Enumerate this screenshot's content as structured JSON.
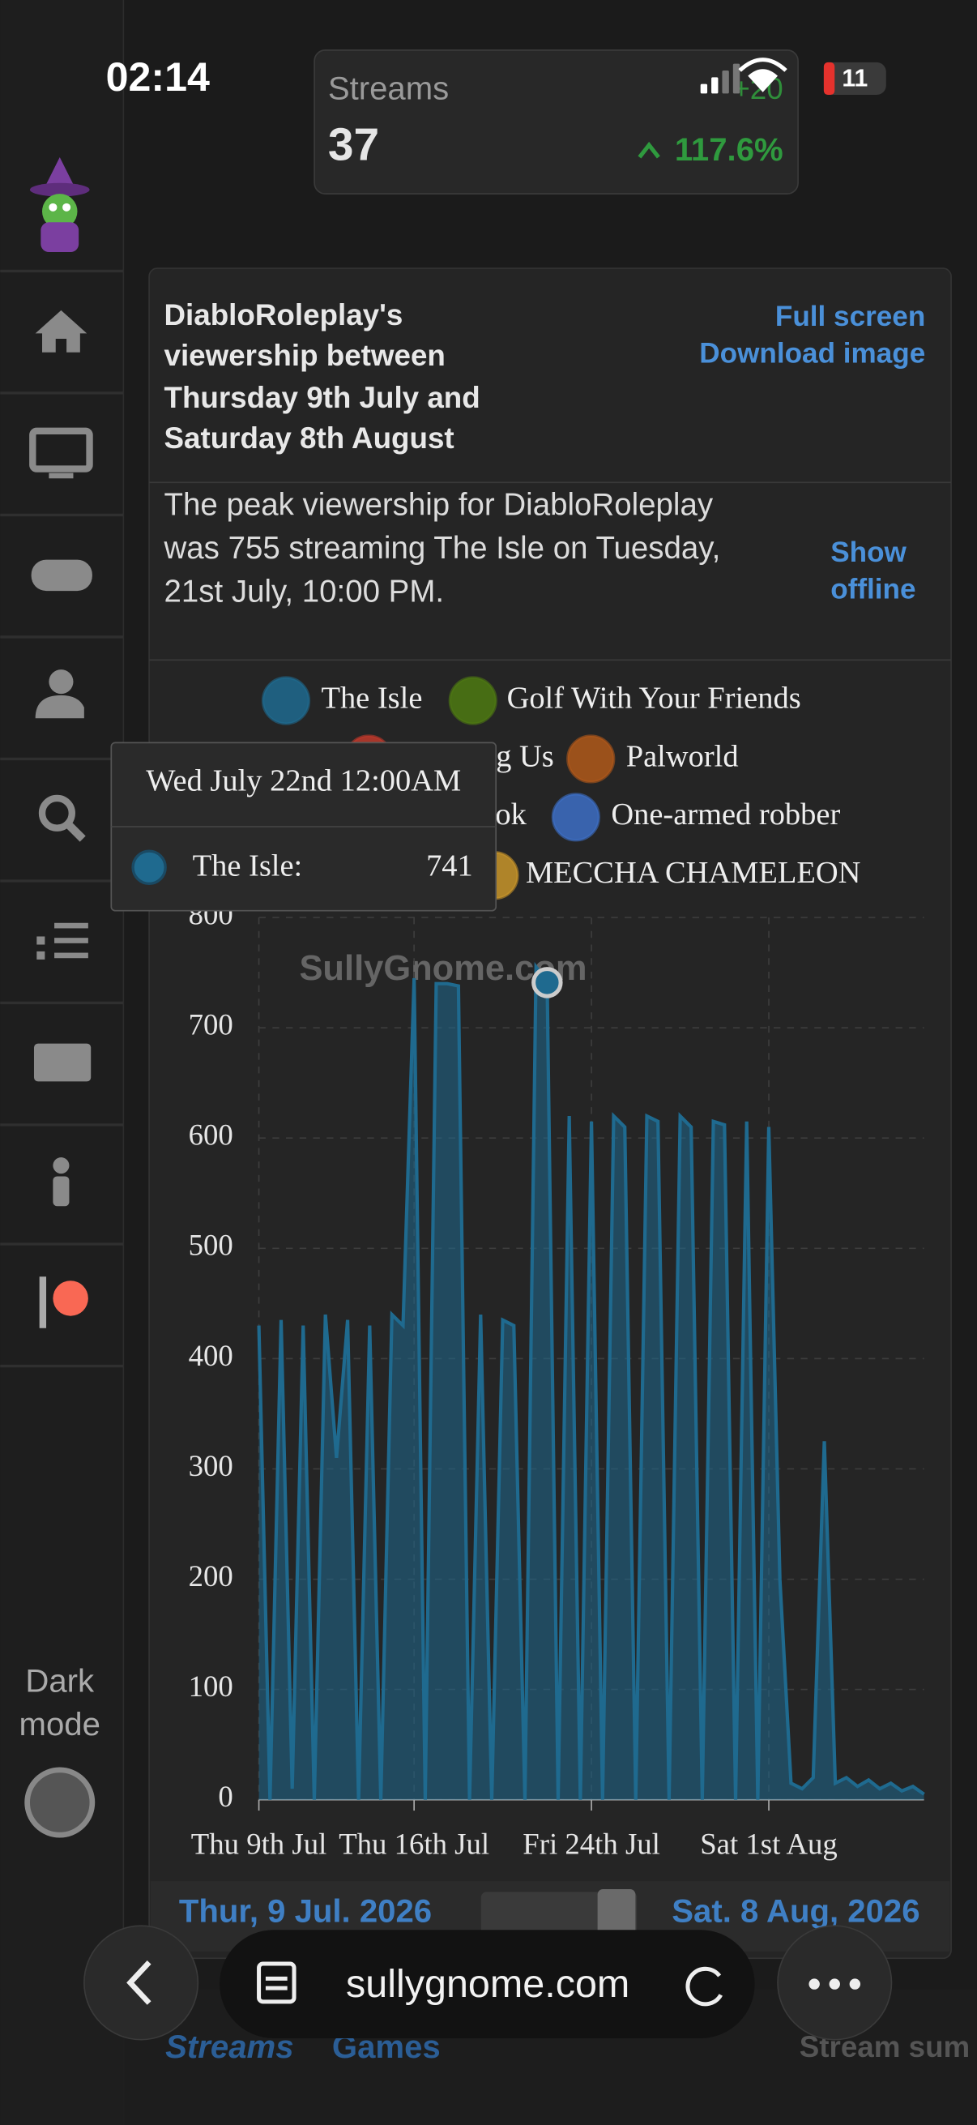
{
  "status_bar": {
    "time": "02:14",
    "battery": "11"
  },
  "stat_card": {
    "label": "Streams",
    "value": 37,
    "change": "+20",
    "percent": "117.6%"
  },
  "sidebar": {
    "dark_mode": [
      "Dark",
      "mode"
    ]
  },
  "panel": {
    "title": [
      "DiabloRoleplay's",
      "viewership between",
      "Thursday 9th July and",
      "Saturday 8th August"
    ],
    "links": [
      "Full screen",
      "Download image"
    ],
    "description": [
      "The peak viewership for DiabloRoleplay",
      "was 755 streaming The Isle on Tuesday,",
      "21st July, 10:00 PM."
    ],
    "show_offline": [
      "Show",
      "offline"
    ],
    "date_from": "Thur, 9 Jul. 2026",
    "date_to": "Sat. 8 Aug, 2026"
  },
  "chart_data": {
    "type": "line",
    "watermark": "SullyGnome.com",
    "categories": [
      "Thu 9th Jul",
      null,
      null,
      null,
      null,
      null,
      null,
      null,
      null,
      null,
      null,
      null,
      null,
      null,
      "Thu 16th Jul",
      null,
      null,
      null,
      null,
      null,
      null,
      null,
      null,
      null,
      null,
      null,
      null,
      null,
      null,
      null,
      "Fri 24th Jul",
      null,
      null,
      null,
      null,
      null,
      null,
      null,
      null,
      null,
      null,
      null,
      null,
      null,
      null,
      null,
      "Sat 1st Aug",
      null,
      null,
      null,
      null,
      null,
      null,
      null,
      null,
      null,
      null,
      null,
      null,
      null,
      null
    ],
    "series": [
      {
        "name": "The Isle",
        "color": "#1f6a8f",
        "values": [
          430,
          0,
          435,
          10,
          430,
          0,
          440,
          310,
          435,
          0,
          430,
          0,
          440,
          430,
          745,
          0,
          740,
          740,
          738,
          0,
          440,
          0,
          435,
          430,
          0,
          755,
          741,
          0,
          620,
          0,
          615,
          0,
          620,
          610,
          0,
          620,
          615,
          0,
          620,
          610,
          0,
          615,
          612,
          0,
          615,
          0,
          610,
          200,
          15,
          10,
          20,
          325,
          15,
          20,
          12,
          18,
          10,
          15,
          8,
          12,
          5
        ]
      }
    ],
    "legend_entries": [
      {
        "name": "Golf With Your Friends",
        "color": "#4e7a12"
      },
      {
        "name": "g Us",
        "color": "#c0392b"
      },
      {
        "name": "Palworld",
        "color": "#b0591a"
      },
      {
        "name": "ook"
      },
      {
        "name": "One-armed robber",
        "color": "#3d6fc6"
      },
      {
        "name": "MECCHA CHAMELEON",
        "color": "#c8952a"
      }
    ],
    "tooltip": {
      "date": "Wed July 22nd 12:00AM",
      "label": "The Isle:",
      "index": 26
    },
    "ylim": [
      0,
      800
    ],
    "yticks": [
      0,
      100,
      200,
      300,
      400,
      500,
      600,
      700,
      800
    ],
    "grid": true
  },
  "browser": {
    "url": "sullygnome.com"
  },
  "tabs": [
    "Streams",
    "Games",
    "Stream sum"
  ]
}
